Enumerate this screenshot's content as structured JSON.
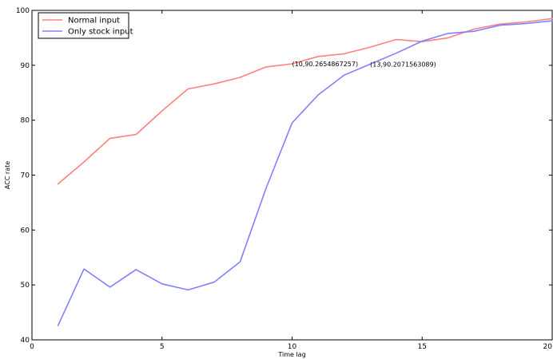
{
  "chart_data": {
    "type": "line",
    "title": "",
    "xlabel": "Time lag",
    "ylabel": "ACC rate",
    "xlim": [
      0,
      20
    ],
    "ylim": [
      40,
      100
    ],
    "xticks": [
      0,
      5,
      10,
      15,
      20
    ],
    "yticks": [
      40,
      50,
      60,
      70,
      80,
      90,
      100
    ],
    "grid": false,
    "legend_position": "top-left",
    "series": [
      {
        "name": "Normal input",
        "color": "#ff8080",
        "points": [
          [
            1,
            68.4
          ],
          [
            2,
            72.4
          ],
          [
            3,
            76.7
          ],
          [
            4,
            77.4
          ],
          [
            5,
            81.7
          ],
          [
            6,
            85.7
          ],
          [
            7,
            86.6
          ],
          [
            8,
            87.8
          ],
          [
            9,
            89.7
          ],
          [
            10,
            90.27
          ],
          [
            11,
            91.6
          ],
          [
            12,
            92.1
          ],
          [
            13,
            93.3
          ],
          [
            14,
            94.7
          ],
          [
            15,
            94.3
          ],
          [
            16,
            95.0
          ],
          [
            17,
            96.6
          ],
          [
            18,
            97.5
          ],
          [
            19,
            97.9
          ],
          [
            20,
            98.5
          ]
        ]
      },
      {
        "name": "Only stock input",
        "color": "#8080ff",
        "points": [
          [
            1,
            42.6
          ],
          [
            2,
            52.9
          ],
          [
            3,
            49.6
          ],
          [
            4,
            52.8
          ],
          [
            5,
            50.2
          ],
          [
            6,
            49.1
          ],
          [
            7,
            50.5
          ],
          [
            8,
            54.2
          ],
          [
            9,
            67.6
          ],
          [
            10,
            79.5
          ],
          [
            11,
            84.6
          ],
          [
            12,
            88.2
          ],
          [
            13,
            90.21
          ],
          [
            14,
            92.2
          ],
          [
            15,
            94.4
          ],
          [
            16,
            95.8
          ],
          [
            17,
            96.2
          ],
          [
            18,
            97.3
          ],
          [
            19,
            97.6
          ],
          [
            20,
            98.1
          ]
        ]
      }
    ],
    "annotations": [
      {
        "text": "(10,90.2654867257)",
        "x": 10,
        "y": 90.2654867257
      },
      {
        "text": "(13,90.2071563089)",
        "x": 13,
        "y": 90.2071563089
      }
    ]
  }
}
